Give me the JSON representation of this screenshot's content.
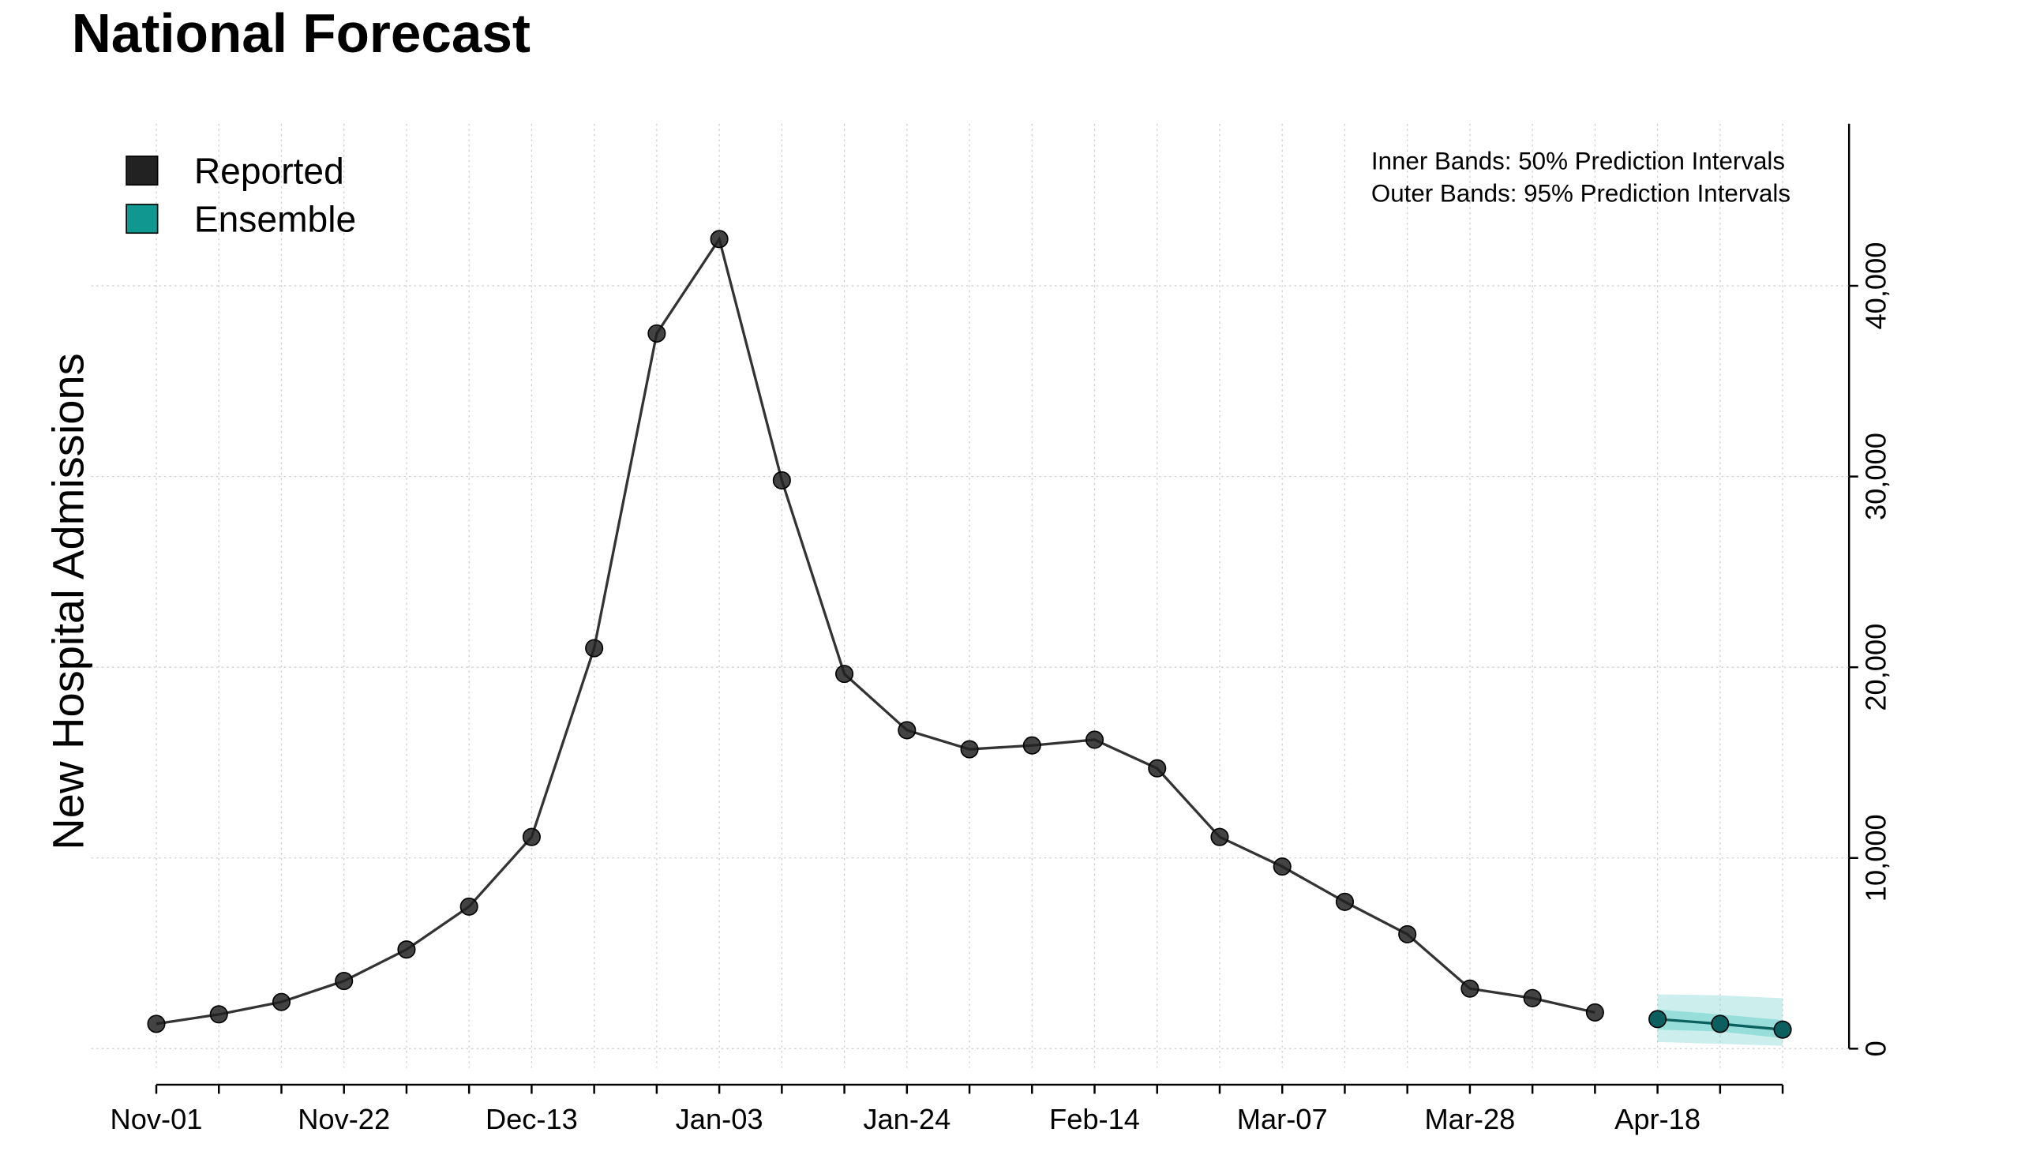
{
  "chart_data": {
    "type": "line",
    "title": "National Forecast",
    "y_label": "New Hospital Admissions",
    "annotations": [
      "Inner Bands: 50% Prediction Intervals",
      "Outer Bands: 95% Prediction Intervals"
    ],
    "categories": [
      "Nov-01",
      null,
      null,
      "Nov-22",
      null,
      null,
      "Dec-13",
      null,
      null,
      "Jan-03",
      null,
      null,
      "Jan-24",
      null,
      null,
      "Feb-14",
      null,
      null,
      "Mar-07",
      null,
      null,
      "Mar-28",
      null,
      null,
      "Apr-18",
      null,
      null
    ],
    "series": [
      {
        "name": "Reported",
        "color": "#222222",
        "values": [
          1300,
          1800,
          2450,
          3550,
          5200,
          7450,
          11100,
          21000,
          37500,
          42450,
          29800,
          19650,
          16700,
          15700,
          15900,
          16200,
          14700,
          11100,
          9550,
          7700,
          6000,
          3150,
          2650,
          1900,
          null,
          null,
          null
        ]
      },
      {
        "name": "Ensemble",
        "color": "#0f9790",
        "line_color": "#0b5f5f",
        "band_color": "#33bfb6",
        "values": [
          null,
          null,
          null,
          null,
          null,
          null,
          null,
          null,
          null,
          null,
          null,
          null,
          null,
          null,
          null,
          null,
          null,
          null,
          null,
          null,
          null,
          null,
          null,
          null,
          1550,
          1300,
          1000
        ],
        "lower_95": [
          null,
          null,
          null,
          null,
          null,
          null,
          null,
          null,
          null,
          null,
          null,
          null,
          null,
          null,
          null,
          null,
          null,
          null,
          null,
          null,
          null,
          null,
          null,
          null,
          350,
          250,
          150
        ],
        "upper_95": [
          null,
          null,
          null,
          null,
          null,
          null,
          null,
          null,
          null,
          null,
          null,
          null,
          null,
          null,
          null,
          null,
          null,
          null,
          null,
          null,
          null,
          null,
          null,
          null,
          2850,
          2800,
          2650
        ],
        "lower_50": [
          null,
          null,
          null,
          null,
          null,
          null,
          null,
          null,
          null,
          null,
          null,
          null,
          null,
          null,
          null,
          null,
          null,
          null,
          null,
          null,
          null,
          null,
          null,
          null,
          1000,
          900,
          550
        ],
        "upper_50": [
          null,
          null,
          null,
          null,
          null,
          null,
          null,
          null,
          null,
          null,
          null,
          null,
          null,
          null,
          null,
          null,
          null,
          null,
          null,
          null,
          null,
          null,
          null,
          null,
          2050,
          1800,
          1500
        ]
      }
    ],
    "ylim": [
      -1000,
      48500
    ],
    "yticks": [
      0,
      {
        "value": 10000,
        "label": "10,000"
      },
      {
        "value": 20000,
        "label": "20,000"
      },
      {
        "value": 30000,
        "label": "30,000"
      },
      {
        "value": 40000,
        "label": "40,000"
      }
    ],
    "grid": true,
    "y_axis_side": "right",
    "legend_position": "upper left"
  }
}
